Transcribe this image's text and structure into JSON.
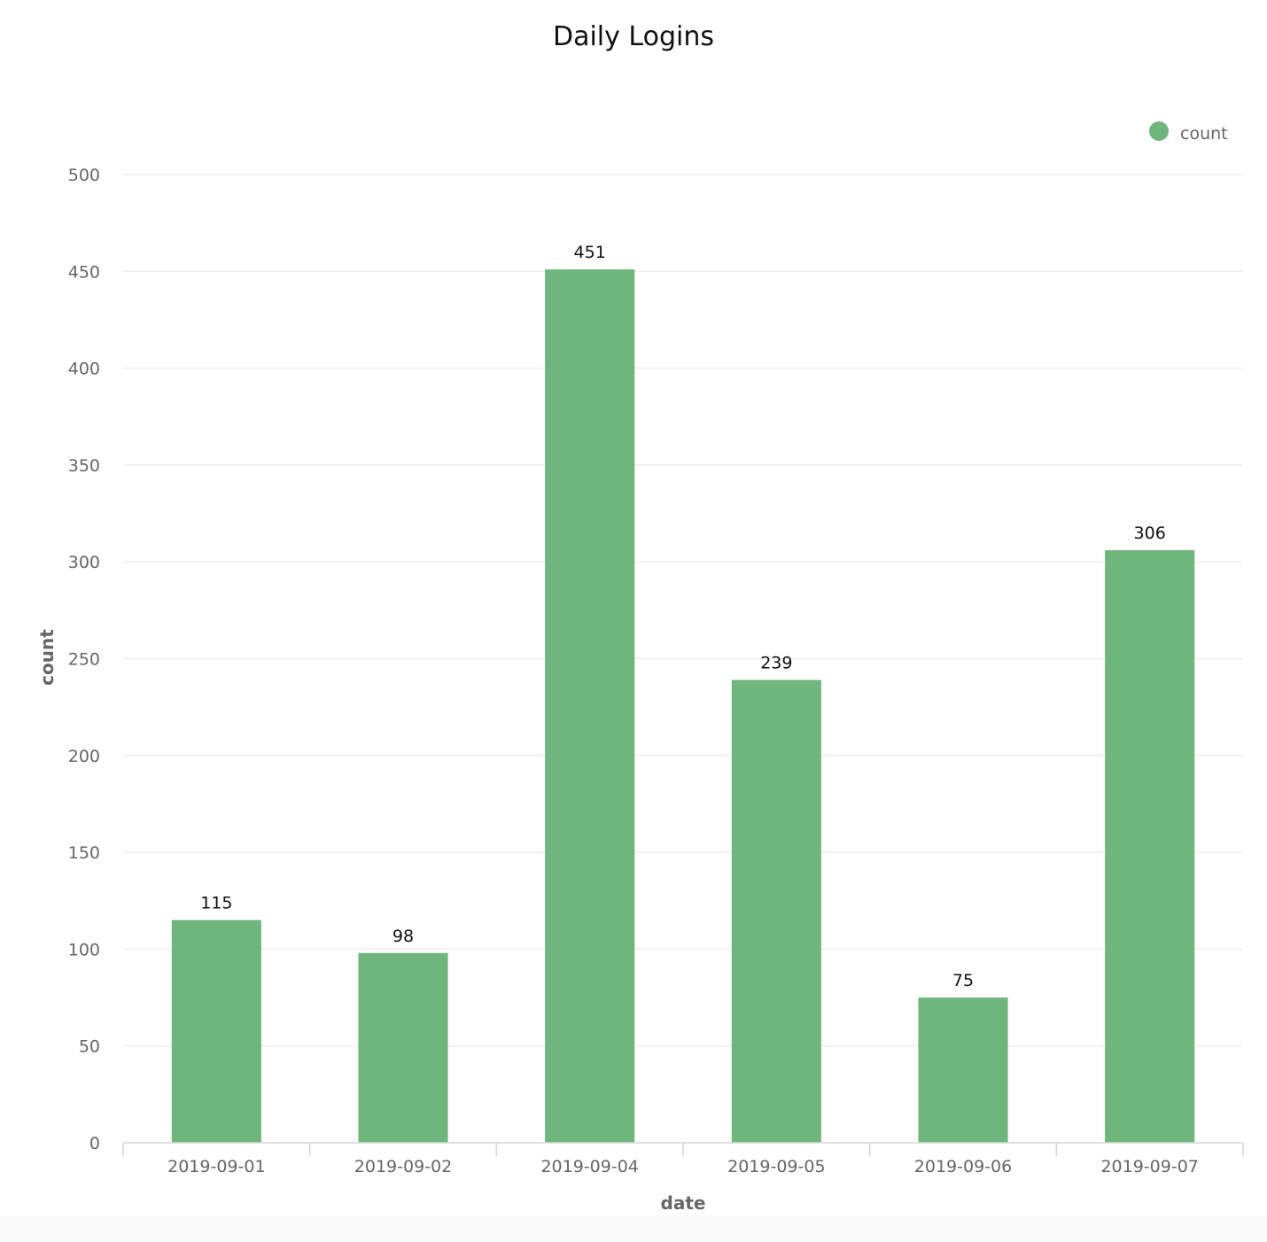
{
  "chart_data": {
    "type": "bar",
    "title": "Daily Logins",
    "xlabel": "date",
    "ylabel": "count",
    "categories": [
      "2019-09-01",
      "2019-09-02",
      "2019-09-04",
      "2019-09-05",
      "2019-09-06",
      "2019-09-07"
    ],
    "series": [
      {
        "name": "count",
        "values": [
          115,
          98,
          451,
          239,
          75,
          306
        ],
        "color": "#6fb67d"
      }
    ],
    "data_labels": [
      "115",
      "98",
      "451",
      "239",
      "75",
      "306"
    ],
    "ylim": [
      0,
      500
    ],
    "yticks": [
      0,
      50,
      100,
      150,
      200,
      250,
      300,
      350,
      400,
      450,
      500
    ],
    "grid": true,
    "legend": "top-right",
    "gridColor": "#eeeeee",
    "axisColor": "#d6d6d6"
  }
}
